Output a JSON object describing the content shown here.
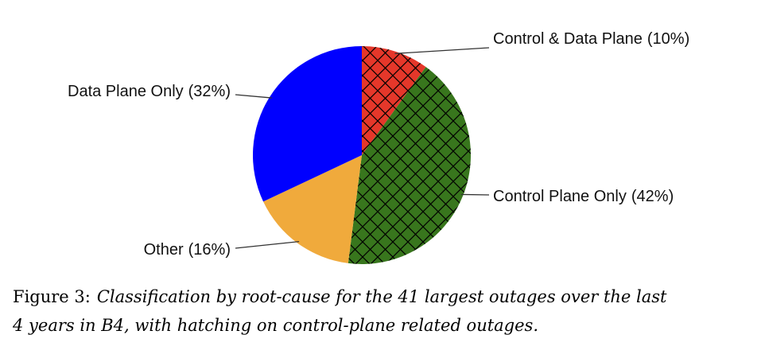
{
  "chart_data": {
    "type": "pie",
    "categories": [
      "Control & Data Plane",
      "Control Plane Only",
      "Other",
      "Data Plane Only"
    ],
    "values": [
      10,
      42,
      16,
      32
    ],
    "value_labels": [
      "(10%)",
      "(42%)",
      "(16%)",
      "(32%)"
    ],
    "colors": [
      "#e5372a",
      "#38761d",
      "#f0aa3c",
      "#0000ff"
    ],
    "hatched": [
      true,
      true,
      false,
      false
    ],
    "caption_label": "Figure 3:",
    "caption_lines": [
      "Classification by root-cause for the 41 largest outages over the last",
      "4 years in B4, with hatching on control-plane related outages."
    ]
  }
}
